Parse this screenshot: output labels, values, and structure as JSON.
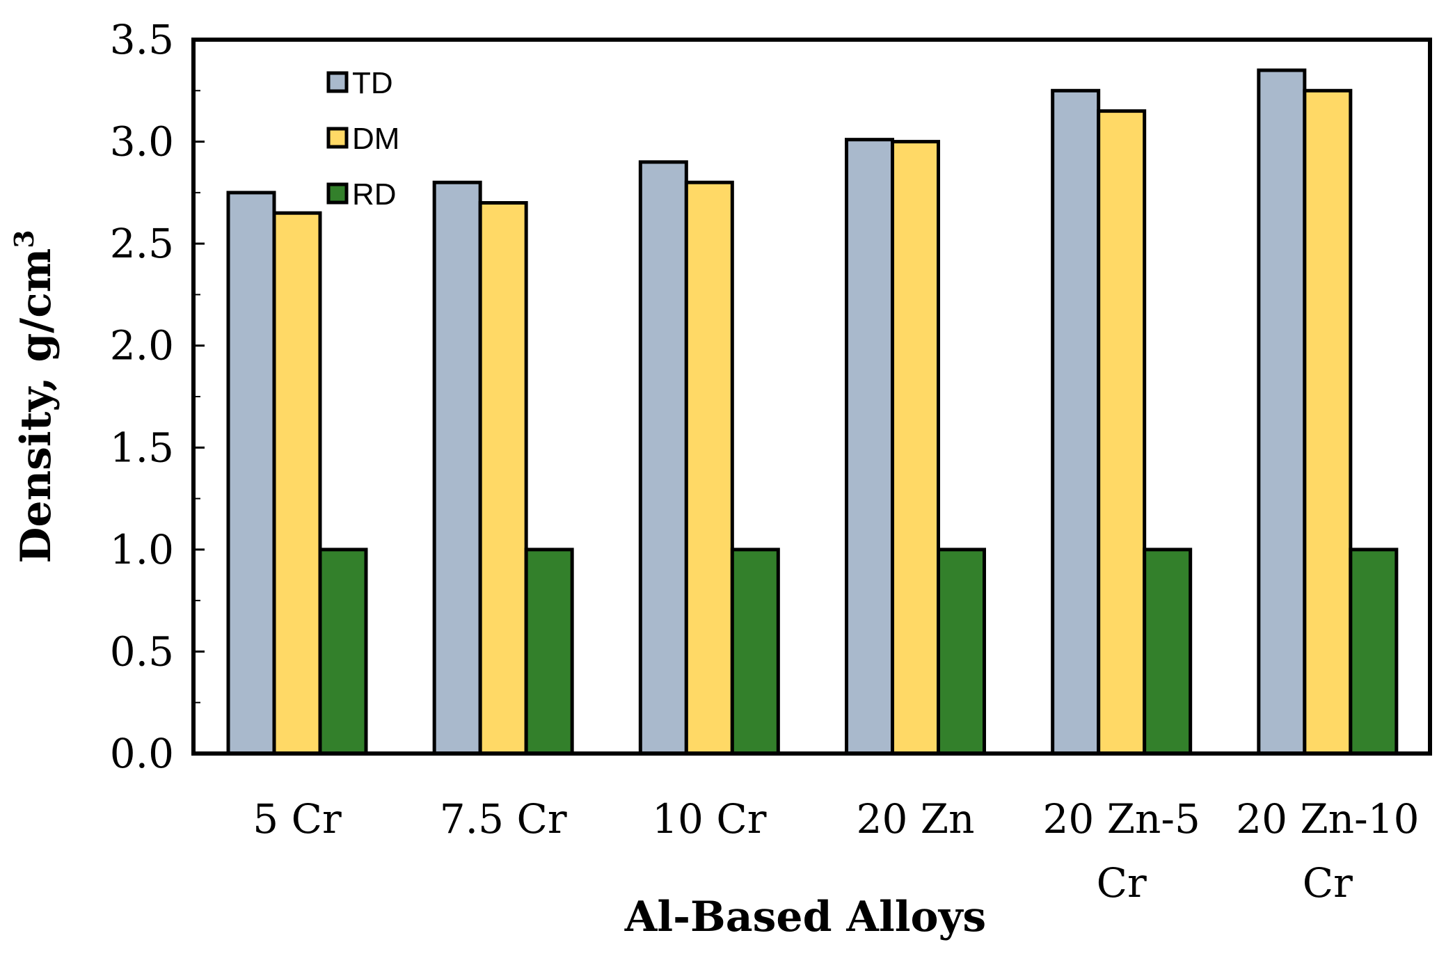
{
  "chart_data": {
    "type": "bar",
    "title": "",
    "xlabel": "Al-Based Alloys",
    "ylabel": "Density, g/cm",
    "ylabel_superscript": "3",
    "ylim": [
      0,
      3.5
    ],
    "y_ticks": [
      "0.0",
      "0.5",
      "1.0",
      "1.5",
      "2.0",
      "2.5",
      "3.0",
      "3.5"
    ],
    "categories": [
      [
        "5 Cr"
      ],
      [
        "7.5 Cr"
      ],
      [
        "10 Cr"
      ],
      [
        "20 Zn"
      ],
      [
        "20 Zn-5",
        "Cr"
      ],
      [
        "20 Zn-10",
        "Cr"
      ]
    ],
    "series": [
      {
        "name": "TD",
        "color": "#a9b9cc",
        "values": [
          2.75,
          2.8,
          2.9,
          3.01,
          3.25,
          3.35
        ]
      },
      {
        "name": "DM",
        "color": "#ffd966",
        "values": [
          2.65,
          2.7,
          2.8,
          3.0,
          3.15,
          3.25
        ]
      },
      {
        "name": "RD",
        "color": "#33802b",
        "values": [
          1.0,
          1.0,
          1.0,
          1.0,
          1.0,
          1.0
        ]
      }
    ],
    "legend_position": "top-left",
    "grid": false
  }
}
